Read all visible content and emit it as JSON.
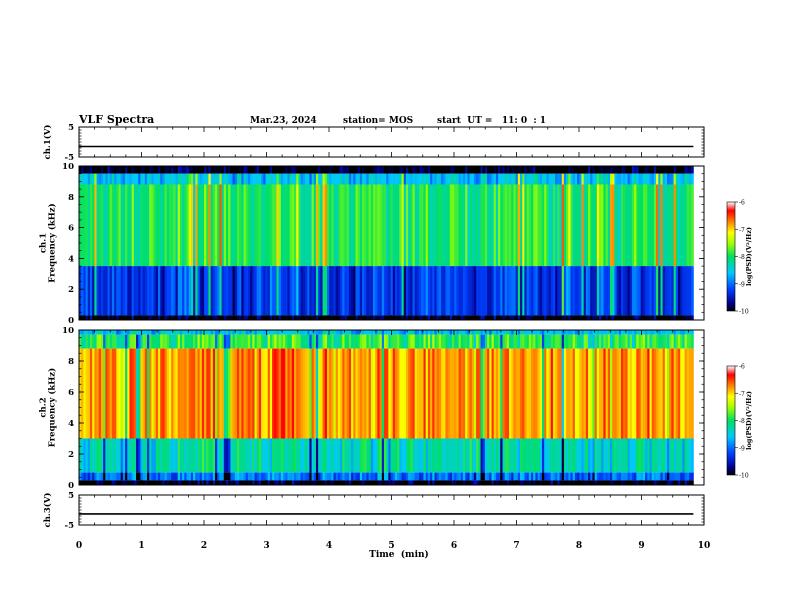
{
  "header": {
    "title": "VLF Spectra",
    "date": "Mar.23, 2024",
    "station": "station= MOS",
    "start": "start  UT =   11: 0  : 1"
  },
  "chart_data": [
    {
      "type": "line",
      "ylabel": "ch.1(V)",
      "ylim": [
        -5,
        5
      ],
      "yticks": [
        5,
        -5
      ],
      "xlim": [
        0,
        9.83
      ],
      "series": [
        {
          "values": [
            -1.5,
            -1.5,
            -1.5,
            -1.5,
            -1.5,
            -1.5,
            -1.5,
            -1.5,
            -1.5,
            -1.5,
            -1.5
          ]
        }
      ]
    },
    {
      "type": "heatmap",
      "ylabel": "ch.1\nFrequency (kHz)",
      "ylim": [
        0,
        10
      ],
      "yticks": [
        0,
        2,
        4,
        6,
        8,
        10
      ],
      "xlim": [
        0,
        9.83
      ],
      "colorbar": {
        "label": "log(PSD)(V²/Hz)",
        "ticks": [
          -6,
          -7,
          -8,
          -9,
          -10
        ],
        "range": [
          -10,
          -6
        ]
      },
      "bands": [
        {
          "f": [
            9.5,
            10
          ],
          "level": -10
        },
        {
          "f": [
            8.8,
            9.5
          ],
          "level": -8.6
        },
        {
          "f": [
            3.5,
            8.8
          ],
          "level": -8.0
        },
        {
          "f": [
            0.3,
            3.5
          ],
          "level": -9.3
        },
        {
          "f": [
            0,
            0.3
          ],
          "level": -10
        }
      ]
    },
    {
      "type": "heatmap",
      "ylabel": "ch.2\nFrequency (kHz)",
      "ylim": [
        0,
        10
      ],
      "yticks": [
        0,
        2,
        4,
        6,
        8,
        10
      ],
      "xlim": [
        0,
        9.83
      ],
      "colorbar": {
        "label": "log(PSD)(V²/Hz)",
        "ticks": [
          -6,
          -7,
          -8,
          -9,
          -10
        ],
        "range": [
          -10,
          -6
        ]
      },
      "bands": [
        {
          "f": [
            9.7,
            10
          ],
          "level": -8.6
        },
        {
          "f": [
            8.8,
            9.7
          ],
          "level": -7.9
        },
        {
          "f": [
            3.0,
            8.8
          ],
          "level": -6.8
        },
        {
          "f": [
            0.8,
            3.0
          ],
          "level": -8.3
        },
        {
          "f": [
            0.3,
            0.8
          ],
          "level": -9.0
        },
        {
          "f": [
            0,
            0.3
          ],
          "level": -10
        }
      ]
    },
    {
      "type": "line",
      "ylabel": "ch.3(V)",
      "ylim": [
        -5,
        5
      ],
      "yticks": [
        5,
        -5
      ],
      "xlim": [
        0,
        9.83
      ],
      "series": [
        {
          "values": [
            -1.3,
            -1.3,
            -1.3,
            -1.3,
            -1.3,
            -1.3,
            -1.3,
            -1.3,
            -1.3,
            -1.3,
            -1.3
          ]
        }
      ]
    }
  ],
  "xaxis": {
    "label": "Time  (min)",
    "ticks": [
      0,
      1,
      2,
      3,
      4,
      5,
      6,
      7,
      8,
      9,
      10
    ],
    "range": [
      0,
      10
    ]
  }
}
